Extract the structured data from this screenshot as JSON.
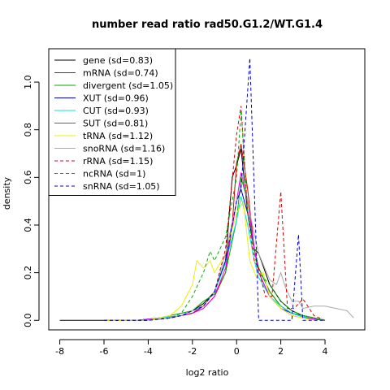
{
  "chart_data": {
    "type": "line",
    "title": "number read ratio rad50.G1.2/WT.G1.4",
    "xlabel": "log2 ratio",
    "ylabel": "density",
    "xlim": [
      -8.5,
      5.8
    ],
    "ylim": [
      -0.04,
      1.14
    ],
    "xticks": [
      -8,
      -6,
      -4,
      -2,
      0,
      2,
      4
    ],
    "yticks": [
      0.0,
      0.2,
      0.4,
      0.6,
      0.8,
      1.0
    ],
    "xtick_labels": [
      "-8",
      "-6",
      "-4",
      "-2",
      "0",
      "2",
      "4"
    ],
    "ytick_labels": [
      "0.0",
      "0.2",
      "0.4",
      "0.6",
      "0.8",
      "1.0"
    ],
    "legend": {
      "placement": "top-left"
    },
    "series": [
      {
        "name": "gene (sd=0.83)",
        "color": "#000000",
        "dash": "solid",
        "x": [
          -8,
          -6,
          -5,
          -4.5,
          -4,
          -3.5,
          -3,
          -2.5,
          -2,
          -1.5,
          -1,
          -0.5,
          -0.2,
          0,
          0.2,
          0.5,
          0.8,
          1,
          1.5,
          2,
          2.5,
          3,
          3.5,
          4
        ],
        "y": [
          0,
          0,
          0,
          0,
          0.005,
          0.005,
          0.01,
          0.02,
          0.04,
          0.07,
          0.12,
          0.25,
          0.6,
          0.65,
          0.72,
          0.45,
          0.3,
          0.28,
          0.15,
          0.08,
          0.04,
          0.02,
          0.01,
          0
        ]
      },
      {
        "name": "mRNA (sd=0.74)",
        "color": "#dd0000",
        "dash": "solid",
        "x": [
          -6,
          -4.5,
          -4,
          -3.5,
          -3,
          -2.5,
          -2,
          -1.5,
          -1,
          -0.5,
          -0.2,
          0,
          0.2,
          0.5,
          0.8,
          1,
          1.5,
          2,
          2.5,
          3,
          3.5,
          4
        ],
        "y": [
          0,
          0,
          0.005,
          0.005,
          0.01,
          0.02,
          0.03,
          0.05,
          0.1,
          0.2,
          0.4,
          0.66,
          0.74,
          0.55,
          0.3,
          0.22,
          0.12,
          0.06,
          0.03,
          0.015,
          0.005,
          0
        ]
      },
      {
        "name": "divergent (sd=1.05)",
        "color": "#00aa00",
        "dash": "solid",
        "x": [
          -6,
          -4.5,
          -4,
          -3.5,
          -3,
          -2.5,
          -2,
          -1.5,
          -1,
          -0.5,
          0,
          0.2,
          0.5,
          0.8,
          1,
          1.5,
          2,
          2.5,
          3,
          3.5,
          4
        ],
        "y": [
          0,
          0,
          0.005,
          0.01,
          0.02,
          0.03,
          0.04,
          0.08,
          0.11,
          0.2,
          0.42,
          0.6,
          0.5,
          0.3,
          0.22,
          0.12,
          0.06,
          0.03,
          0.02,
          0.01,
          0
        ]
      },
      {
        "name": "XUT (sd=0.96)",
        "color": "#0000cc",
        "dash": "solid",
        "x": [
          -6,
          -4.5,
          -4,
          -3.5,
          -3,
          -2.5,
          -2,
          -1.5,
          -1,
          -0.5,
          0,
          0.2,
          0.5,
          0.8,
          1,
          1.5,
          2,
          2.5,
          3,
          3.5,
          4
        ],
        "y": [
          0,
          0,
          0.005,
          0.01,
          0.015,
          0.02,
          0.03,
          0.06,
          0.12,
          0.25,
          0.5,
          0.55,
          0.45,
          0.3,
          0.2,
          0.1,
          0.05,
          0.03,
          0.015,
          0.005,
          0
        ]
      },
      {
        "name": "CUT (sd=0.93)",
        "color": "#00e0e0",
        "dash": "solid",
        "x": [
          -6,
          -4.5,
          -4,
          -3.5,
          -3,
          -2.5,
          -2,
          -1.5,
          -1,
          -0.5,
          0,
          0.2,
          0.5,
          0.8,
          1,
          1.5,
          2,
          2.5,
          3,
          3.5,
          4
        ],
        "y": [
          0,
          0,
          0.005,
          0.01,
          0.015,
          0.02,
          0.04,
          0.06,
          0.12,
          0.24,
          0.42,
          0.52,
          0.4,
          0.25,
          0.18,
          0.1,
          0.06,
          0.03,
          0.015,
          0.005,
          0
        ]
      },
      {
        "name": "SUT (sd=0.81)",
        "color": "#ee00ee",
        "dash": "solid",
        "x": [
          -6,
          -4.5,
          -4,
          -3.5,
          -3,
          -2.5,
          -2,
          -1.5,
          -1,
          -0.5,
          0,
          0.2,
          0.5,
          0.8,
          1,
          1.5,
          2,
          2.5,
          3,
          3.5,
          4
        ],
        "y": [
          0,
          0,
          0.005,
          0.005,
          0.01,
          0.02,
          0.03,
          0.05,
          0.1,
          0.22,
          0.5,
          0.62,
          0.5,
          0.3,
          0.2,
          0.1,
          0.05,
          0.02,
          0.01,
          0.005,
          0
        ]
      },
      {
        "name": "tRNA (sd=1.12)",
        "color": "#eeee00",
        "dash": "solid",
        "x": [
          -6,
          -4,
          -3,
          -2.5,
          -2,
          -1.8,
          -1.5,
          -1.2,
          -1,
          -0.5,
          0,
          0.3,
          0.6,
          0.9,
          1.2,
          1.5,
          2,
          2.5,
          3,
          3.5
        ],
        "y": [
          0,
          0,
          0.02,
          0.06,
          0.15,
          0.25,
          0.22,
          0.25,
          0.2,
          0.28,
          0.45,
          0.5,
          0.25,
          0.18,
          0.2,
          0.1,
          0.05,
          0.02,
          0.01,
          0
        ]
      },
      {
        "name": "snoRNA (sd=1.16)",
        "color": "#aaaaaa",
        "dash": "solid",
        "x": [
          -5,
          -4,
          -3,
          -2.5,
          -2,
          -1.5,
          -1,
          -0.5,
          0,
          0.3,
          0.6,
          1,
          1.5,
          1.8,
          2,
          2.2,
          2.5,
          2.8,
          3,
          3.5,
          4,
          4.5,
          5,
          5.3
        ],
        "y": [
          0,
          0,
          0.01,
          0.02,
          0.04,
          0.06,
          0.12,
          0.28,
          0.5,
          0.6,
          0.45,
          0.28,
          0.17,
          0.15,
          0.2,
          0.14,
          0.08,
          0.08,
          0.05,
          0.06,
          0.06,
          0.05,
          0.04,
          0.01
        ]
      },
      {
        "name": "rRNA (sd=1.15)",
        "color": "#dd0000",
        "dash": "dashed",
        "x": [
          -6,
          -4,
          -3,
          -2,
          -1.5,
          -1,
          -0.5,
          0,
          0.2,
          0.5,
          0.8,
          1,
          1.3,
          1.6,
          2,
          2.3,
          2.6,
          3,
          3.5,
          4
        ],
        "y": [
          0,
          0,
          0.01,
          0.03,
          0.06,
          0.12,
          0.3,
          0.78,
          0.9,
          0.45,
          0.25,
          0.22,
          0.1,
          0.1,
          0.54,
          0.05,
          0.05,
          0.09,
          0.02,
          0
        ]
      },
      {
        "name": "ncRNA (sd=1)",
        "color": "#00aa00",
        "dash": "dashed",
        "x": [
          -6,
          -4,
          -3,
          -2.5,
          -2,
          -1.5,
          -1.2,
          -1,
          -0.5,
          0,
          0.2,
          0.5,
          0.8,
          1,
          1.5,
          2,
          2.5,
          3,
          3.5,
          4
        ],
        "y": [
          0,
          0,
          0.01,
          0.03,
          0.1,
          0.2,
          0.29,
          0.25,
          0.35,
          0.6,
          0.88,
          0.45,
          0.28,
          0.2,
          0.15,
          0.08,
          0.04,
          0.02,
          0.01,
          0
        ]
      },
      {
        "name": "snRNA (sd=1.05)",
        "color": "#0000cc",
        "dash": "dashed",
        "x": [
          -6,
          -4,
          -3,
          -2.5,
          -2,
          -1.5,
          -1,
          -0.5,
          0,
          0.2,
          0.6,
          1,
          1.5,
          2,
          2.5,
          2.8,
          3,
          3.5,
          4
        ],
        "y": [
          0,
          0,
          0.01,
          0.02,
          0.04,
          0.06,
          0.12,
          0.25,
          0.5,
          0.55,
          1.1,
          0.0,
          0.0,
          0.0,
          0.0,
          0.36,
          0.0,
          0.0,
          0
        ]
      }
    ]
  }
}
